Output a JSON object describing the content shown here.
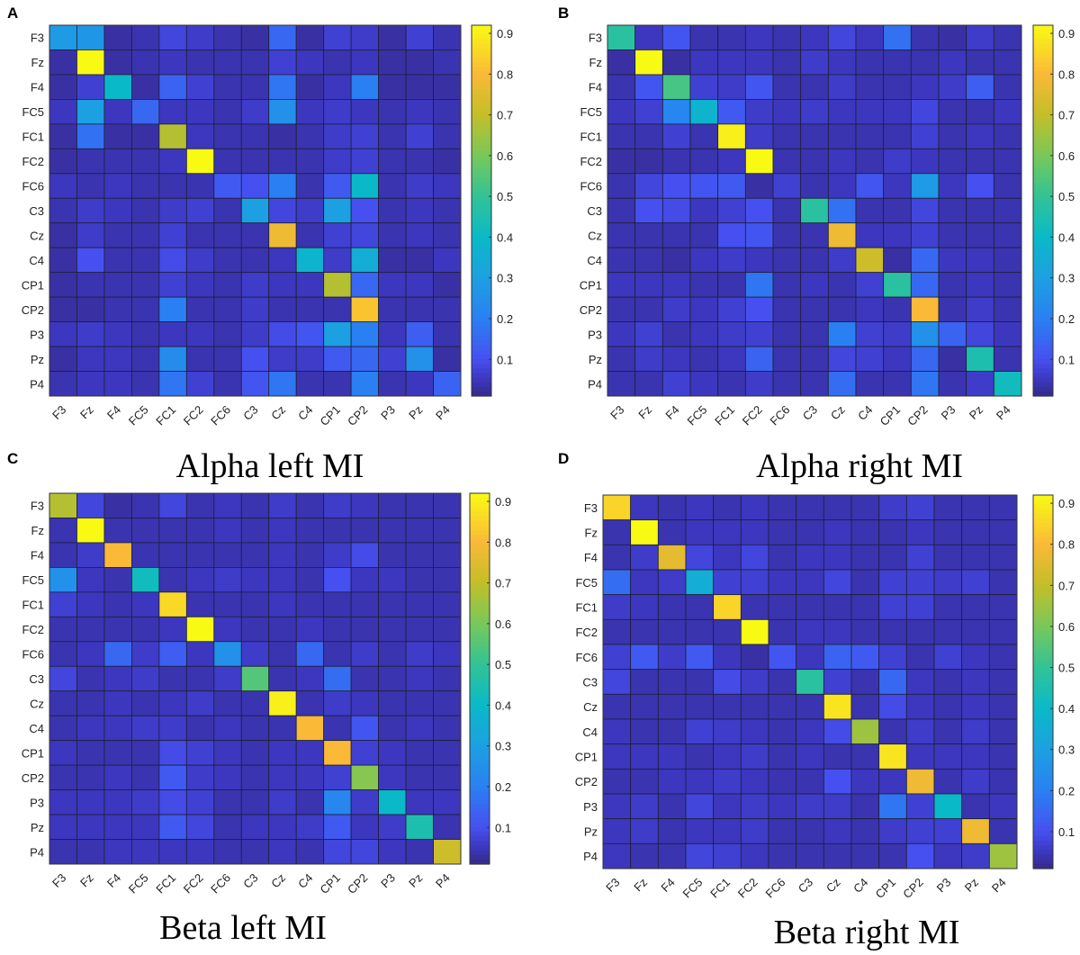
{
  "chart_data": [
    {
      "type": "heatmap",
      "panel": "A",
      "title": "Alpha left MI",
      "rows": [
        "F3",
        "Fz",
        "F4",
        "FC5",
        "FC1",
        "FC2",
        "FC6",
        "C3",
        "Cz",
        "C4",
        "CP1",
        "CP2",
        "P3",
        "Pz",
        "P4"
      ],
      "cols": [
        "F3",
        "Fz",
        "F4",
        "FC5",
        "FC1",
        "FC2",
        "FC6",
        "C3",
        "Cz",
        "C4",
        "CP1",
        "CP2",
        "P3",
        "Pz",
        "P4"
      ],
      "colorbar": {
        "colormap": "parula",
        "range": [
          0.01,
          0.92
        ],
        "ticks": [
          0.1,
          0.2,
          0.3,
          0.4,
          0.5,
          0.6,
          0.7,
          0.8,
          0.9
        ]
      },
      "values": [
        [
          0.28,
          0.27,
          0.03,
          0.04,
          0.08,
          0.06,
          0.04,
          0.03,
          0.15,
          0.03,
          0.07,
          0.06,
          0.03,
          0.07,
          0.04
        ],
        [
          0.03,
          0.92,
          0.03,
          0.04,
          0.05,
          0.04,
          0.04,
          0.04,
          0.07,
          0.05,
          0.04,
          0.05,
          0.03,
          0.03,
          0.04
        ],
        [
          0.03,
          0.07,
          0.4,
          0.03,
          0.14,
          0.07,
          0.04,
          0.04,
          0.18,
          0.03,
          0.05,
          0.2,
          0.03,
          0.03,
          0.03
        ],
        [
          0.05,
          0.3,
          0.05,
          0.15,
          0.05,
          0.05,
          0.04,
          0.06,
          0.25,
          0.05,
          0.06,
          0.05,
          0.04,
          0.05,
          0.04
        ],
        [
          0.03,
          0.17,
          0.03,
          0.03,
          0.68,
          0.05,
          0.04,
          0.04,
          0.03,
          0.04,
          0.06,
          0.07,
          0.04,
          0.07,
          0.04
        ],
        [
          0.03,
          0.04,
          0.04,
          0.04,
          0.05,
          0.92,
          0.04,
          0.04,
          0.04,
          0.04,
          0.06,
          0.07,
          0.04,
          0.04,
          0.03
        ],
        [
          0.05,
          0.04,
          0.05,
          0.04,
          0.04,
          0.04,
          0.12,
          0.1,
          0.2,
          0.04,
          0.12,
          0.4,
          0.04,
          0.06,
          0.05
        ],
        [
          0.04,
          0.06,
          0.05,
          0.04,
          0.06,
          0.07,
          0.04,
          0.3,
          0.08,
          0.06,
          0.3,
          0.1,
          0.04,
          0.05,
          0.04
        ],
        [
          0.03,
          0.06,
          0.04,
          0.04,
          0.07,
          0.04,
          0.04,
          0.04,
          0.78,
          0.04,
          0.07,
          0.08,
          0.04,
          0.05,
          0.04
        ],
        [
          0.03,
          0.1,
          0.04,
          0.04,
          0.09,
          0.06,
          0.04,
          0.04,
          0.05,
          0.38,
          0.06,
          0.35,
          0.03,
          0.03,
          0.05
        ],
        [
          0.03,
          0.04,
          0.04,
          0.04,
          0.07,
          0.05,
          0.04,
          0.06,
          0.05,
          0.05,
          0.68,
          0.15,
          0.05,
          0.05,
          0.03
        ],
        [
          0.03,
          0.03,
          0.04,
          0.04,
          0.2,
          0.04,
          0.04,
          0.06,
          0.04,
          0.04,
          0.04,
          0.82,
          0.04,
          0.04,
          0.04
        ],
        [
          0.05,
          0.06,
          0.05,
          0.04,
          0.05,
          0.05,
          0.04,
          0.06,
          0.09,
          0.11,
          0.3,
          0.2,
          0.05,
          0.13,
          0.04
        ],
        [
          0.03,
          0.05,
          0.05,
          0.04,
          0.24,
          0.04,
          0.04,
          0.1,
          0.06,
          0.06,
          0.12,
          0.15,
          0.07,
          0.25,
          0.03
        ],
        [
          0.04,
          0.05,
          0.05,
          0.04,
          0.18,
          0.07,
          0.04,
          0.11,
          0.18,
          0.04,
          0.04,
          0.2,
          0.04,
          0.05,
          0.14
        ]
      ]
    },
    {
      "type": "heatmap",
      "panel": "B",
      "title": "Alpha right MI",
      "rows": [
        "F3",
        "Fz",
        "F4",
        "FC5",
        "FC1",
        "FC2",
        "FC6",
        "C3",
        "Cz",
        "C4",
        "CP1",
        "CP2",
        "P3",
        "Pz",
        "P4"
      ],
      "cols": [
        "F3",
        "Fz",
        "F4",
        "FC5",
        "FC1",
        "FC2",
        "FC6",
        "C3",
        "Cz",
        "C4",
        "CP1",
        "CP2",
        "P3",
        "Pz",
        "P4"
      ],
      "colorbar": {
        "colormap": "parula",
        "range": [
          0.01,
          0.92
        ],
        "ticks": [
          0.1,
          0.2,
          0.3,
          0.4,
          0.5,
          0.6,
          0.7,
          0.8,
          0.9
        ]
      },
      "values": [
        [
          0.48,
          0.05,
          0.11,
          0.04,
          0.04,
          0.05,
          0.04,
          0.05,
          0.08,
          0.05,
          0.17,
          0.04,
          0.03,
          0.06,
          0.04
        ],
        [
          0.03,
          0.92,
          0.03,
          0.05,
          0.05,
          0.05,
          0.04,
          0.06,
          0.05,
          0.04,
          0.04,
          0.04,
          0.05,
          0.04,
          0.04
        ],
        [
          0.04,
          0.11,
          0.53,
          0.07,
          0.06,
          0.11,
          0.04,
          0.04,
          0.06,
          0.04,
          0.04,
          0.05,
          0.06,
          0.13,
          0.04
        ],
        [
          0.05,
          0.07,
          0.22,
          0.38,
          0.12,
          0.06,
          0.05,
          0.06,
          0.05,
          0.05,
          0.05,
          0.08,
          0.04,
          0.04,
          0.05
        ],
        [
          0.04,
          0.04,
          0.07,
          0.04,
          0.9,
          0.06,
          0.04,
          0.04,
          0.04,
          0.04,
          0.04,
          0.07,
          0.04,
          0.05,
          0.04
        ],
        [
          0.03,
          0.03,
          0.04,
          0.04,
          0.05,
          0.92,
          0.04,
          0.04,
          0.05,
          0.04,
          0.06,
          0.05,
          0.04,
          0.04,
          0.04
        ],
        [
          0.04,
          0.08,
          0.1,
          0.11,
          0.12,
          0.03,
          0.07,
          0.04,
          0.05,
          0.11,
          0.05,
          0.28,
          0.05,
          0.1,
          0.04
        ],
        [
          0.04,
          0.1,
          0.09,
          0.05,
          0.07,
          0.1,
          0.04,
          0.48,
          0.17,
          0.04,
          0.04,
          0.08,
          0.04,
          0.04,
          0.04
        ],
        [
          0.04,
          0.04,
          0.04,
          0.04,
          0.1,
          0.11,
          0.04,
          0.04,
          0.78,
          0.05,
          0.05,
          0.07,
          0.04,
          0.04,
          0.04
        ],
        [
          0.04,
          0.04,
          0.03,
          0.05,
          0.06,
          0.05,
          0.04,
          0.04,
          0.06,
          0.72,
          0.03,
          0.15,
          0.05,
          0.05,
          0.04
        ],
        [
          0.05,
          0.05,
          0.05,
          0.04,
          0.04,
          0.18,
          0.04,
          0.05,
          0.04,
          0.07,
          0.48,
          0.15,
          0.04,
          0.05,
          0.04
        ],
        [
          0.04,
          0.04,
          0.06,
          0.05,
          0.07,
          0.1,
          0.04,
          0.04,
          0.04,
          0.05,
          0.04,
          0.8,
          0.04,
          0.06,
          0.04
        ],
        [
          0.05,
          0.07,
          0.04,
          0.05,
          0.06,
          0.07,
          0.04,
          0.04,
          0.2,
          0.07,
          0.06,
          0.25,
          0.14,
          0.08,
          0.05
        ],
        [
          0.04,
          0.06,
          0.05,
          0.04,
          0.05,
          0.14,
          0.04,
          0.04,
          0.08,
          0.07,
          0.05,
          0.15,
          0.03,
          0.45,
          0.04
        ],
        [
          0.04,
          0.04,
          0.07,
          0.05,
          0.04,
          0.06,
          0.04,
          0.04,
          0.16,
          0.04,
          0.04,
          0.18,
          0.04,
          0.06,
          0.42
        ]
      ]
    },
    {
      "type": "heatmap",
      "panel": "C",
      "title": "Beta left MI",
      "rows": [
        "F3",
        "Fz",
        "F4",
        "FC5",
        "FC1",
        "FC2",
        "FC6",
        "C3",
        "Cz",
        "C4",
        "CP1",
        "CP2",
        "P3",
        "Pz",
        "P4"
      ],
      "cols": [
        "F3",
        "Fz",
        "F4",
        "FC5",
        "FC1",
        "FC2",
        "FC6",
        "C3",
        "Cz",
        "C4",
        "CP1",
        "CP2",
        "P3",
        "Pz",
        "P4"
      ],
      "colorbar": {
        "colormap": "parula",
        "range": [
          0.01,
          0.92
        ],
        "ticks": [
          0.1,
          0.2,
          0.3,
          0.4,
          0.5,
          0.6,
          0.7,
          0.8,
          0.9
        ]
      },
      "values": [
        [
          0.68,
          0.08,
          0.03,
          0.04,
          0.08,
          0.04,
          0.05,
          0.04,
          0.06,
          0.04,
          0.06,
          0.05,
          0.04,
          0.04,
          0.04
        ],
        [
          0.04,
          0.92,
          0.04,
          0.04,
          0.04,
          0.04,
          0.05,
          0.04,
          0.05,
          0.04,
          0.04,
          0.04,
          0.04,
          0.04,
          0.04
        ],
        [
          0.04,
          0.06,
          0.8,
          0.04,
          0.04,
          0.04,
          0.04,
          0.04,
          0.05,
          0.04,
          0.06,
          0.09,
          0.04,
          0.04,
          0.04
        ],
        [
          0.25,
          0.05,
          0.04,
          0.42,
          0.04,
          0.05,
          0.06,
          0.05,
          0.05,
          0.04,
          0.1,
          0.05,
          0.05,
          0.04,
          0.04
        ],
        [
          0.07,
          0.05,
          0.04,
          0.05,
          0.86,
          0.04,
          0.04,
          0.04,
          0.05,
          0.04,
          0.04,
          0.04,
          0.04,
          0.04,
          0.04
        ],
        [
          0.04,
          0.04,
          0.04,
          0.04,
          0.05,
          0.92,
          0.05,
          0.04,
          0.04,
          0.05,
          0.04,
          0.04,
          0.04,
          0.04,
          0.04
        ],
        [
          0.04,
          0.05,
          0.15,
          0.06,
          0.13,
          0.05,
          0.25,
          0.06,
          0.04,
          0.15,
          0.04,
          0.06,
          0.04,
          0.06,
          0.05
        ],
        [
          0.08,
          0.04,
          0.05,
          0.06,
          0.04,
          0.04,
          0.06,
          0.55,
          0.04,
          0.05,
          0.16,
          0.04,
          0.04,
          0.05,
          0.04
        ],
        [
          0.04,
          0.04,
          0.05,
          0.04,
          0.05,
          0.06,
          0.04,
          0.04,
          0.9,
          0.04,
          0.06,
          0.05,
          0.04,
          0.04,
          0.04
        ],
        [
          0.04,
          0.05,
          0.05,
          0.06,
          0.06,
          0.04,
          0.05,
          0.04,
          0.04,
          0.8,
          0.04,
          0.11,
          0.04,
          0.05,
          0.04
        ],
        [
          0.05,
          0.04,
          0.04,
          0.04,
          0.09,
          0.07,
          0.05,
          0.04,
          0.05,
          0.05,
          0.8,
          0.07,
          0.05,
          0.04,
          0.04
        ],
        [
          0.04,
          0.04,
          0.05,
          0.04,
          0.12,
          0.06,
          0.05,
          0.04,
          0.05,
          0.05,
          0.07,
          0.62,
          0.05,
          0.04,
          0.04
        ],
        [
          0.05,
          0.05,
          0.05,
          0.06,
          0.09,
          0.07,
          0.04,
          0.04,
          0.06,
          0.04,
          0.22,
          0.06,
          0.4,
          0.05,
          0.05
        ],
        [
          0.05,
          0.05,
          0.05,
          0.05,
          0.12,
          0.08,
          0.04,
          0.05,
          0.05,
          0.06,
          0.12,
          0.05,
          0.06,
          0.45,
          0.04
        ],
        [
          0.04,
          0.04,
          0.05,
          0.05,
          0.05,
          0.05,
          0.04,
          0.04,
          0.05,
          0.04,
          0.08,
          0.08,
          0.05,
          0.04,
          0.72
        ]
      ]
    },
    {
      "type": "heatmap",
      "panel": "D",
      "title": "Beta right MI",
      "rows": [
        "F3",
        "Fz",
        "F4",
        "FC5",
        "FC1",
        "FC2",
        "FC6",
        "C3",
        "Cz",
        "C4",
        "CP1",
        "CP2",
        "P3",
        "Pz",
        "P4"
      ],
      "cols": [
        "F3",
        "Fz",
        "F4",
        "FC5",
        "FC1",
        "FC2",
        "FC6",
        "C3",
        "Cz",
        "C4",
        "CP1",
        "CP2",
        "P3",
        "Pz",
        "P4"
      ],
      "colorbar": {
        "colormap": "parula",
        "range": [
          0.01,
          0.92
        ],
        "ticks": [
          0.1,
          0.2,
          0.3,
          0.4,
          0.5,
          0.6,
          0.7,
          0.8,
          0.9
        ]
      },
      "values": [
        [
          0.85,
          0.05,
          0.04,
          0.05,
          0.04,
          0.05,
          0.04,
          0.04,
          0.04,
          0.04,
          0.06,
          0.07,
          0.04,
          0.04,
          0.04
        ],
        [
          0.04,
          0.92,
          0.04,
          0.05,
          0.05,
          0.05,
          0.04,
          0.04,
          0.05,
          0.04,
          0.04,
          0.05,
          0.04,
          0.04,
          0.04
        ],
        [
          0.04,
          0.06,
          0.76,
          0.08,
          0.05,
          0.08,
          0.04,
          0.05,
          0.05,
          0.04,
          0.04,
          0.07,
          0.04,
          0.04,
          0.04
        ],
        [
          0.16,
          0.05,
          0.06,
          0.35,
          0.07,
          0.07,
          0.05,
          0.05,
          0.08,
          0.04,
          0.07,
          0.07,
          0.06,
          0.07,
          0.04
        ],
        [
          0.06,
          0.05,
          0.04,
          0.04,
          0.85,
          0.04,
          0.04,
          0.04,
          0.04,
          0.04,
          0.07,
          0.07,
          0.04,
          0.04,
          0.04
        ],
        [
          0.04,
          0.04,
          0.04,
          0.04,
          0.04,
          0.92,
          0.04,
          0.05,
          0.05,
          0.04,
          0.04,
          0.04,
          0.04,
          0.04,
          0.04
        ],
        [
          0.07,
          0.12,
          0.06,
          0.12,
          0.05,
          0.03,
          0.11,
          0.05,
          0.14,
          0.12,
          0.07,
          0.04,
          0.07,
          0.05,
          0.04
        ],
        [
          0.08,
          0.04,
          0.04,
          0.04,
          0.09,
          0.06,
          0.04,
          0.48,
          0.07,
          0.04,
          0.15,
          0.05,
          0.04,
          0.05,
          0.04
        ],
        [
          0.04,
          0.04,
          0.04,
          0.04,
          0.04,
          0.04,
          0.04,
          0.04,
          0.88,
          0.04,
          0.09,
          0.05,
          0.04,
          0.05,
          0.04
        ],
        [
          0.05,
          0.04,
          0.04,
          0.07,
          0.06,
          0.05,
          0.04,
          0.05,
          0.09,
          0.65,
          0.04,
          0.06,
          0.04,
          0.06,
          0.04
        ],
        [
          0.05,
          0.05,
          0.05,
          0.04,
          0.05,
          0.06,
          0.04,
          0.05,
          0.04,
          0.04,
          0.88,
          0.05,
          0.05,
          0.05,
          0.04
        ],
        [
          0.04,
          0.04,
          0.05,
          0.05,
          0.06,
          0.05,
          0.04,
          0.04,
          0.1,
          0.05,
          0.05,
          0.78,
          0.04,
          0.06,
          0.04
        ],
        [
          0.05,
          0.06,
          0.04,
          0.08,
          0.05,
          0.06,
          0.05,
          0.06,
          0.06,
          0.04,
          0.18,
          0.07,
          0.4,
          0.04,
          0.05
        ],
        [
          0.05,
          0.06,
          0.04,
          0.05,
          0.05,
          0.06,
          0.04,
          0.04,
          0.05,
          0.04,
          0.06,
          0.07,
          0.07,
          0.78,
          0.04
        ],
        [
          0.05,
          0.04,
          0.04,
          0.08,
          0.07,
          0.05,
          0.04,
          0.04,
          0.04,
          0.04,
          0.04,
          0.1,
          0.05,
          0.06,
          0.65
        ]
      ]
    }
  ]
}
